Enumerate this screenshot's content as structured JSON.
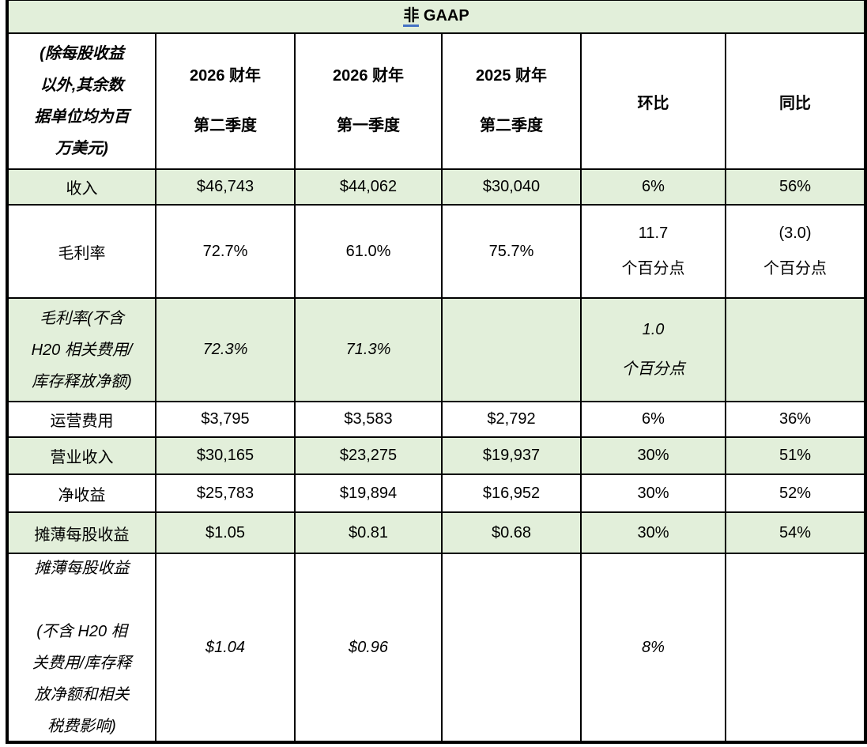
{
  "title": {
    "underlined": "非",
    "rest": " GAAP"
  },
  "header": {
    "description": [
      "(除每股收益",
      "以外,其余数",
      "据单位均为百",
      "万美元)"
    ],
    "col_q2_fy2026": [
      "2026 财年",
      "第二季度"
    ],
    "col_q1_fy2026": [
      "2026 财年",
      "第一季度"
    ],
    "col_q2_fy2025": [
      "2025 财年",
      "第二季度"
    ],
    "col_qoq": "环比",
    "col_yoy": "同比"
  },
  "rows": [
    {
      "label": "收入",
      "q2_fy2026": "$46,743",
      "q1_fy2026": "$44,062",
      "q2_fy2025": "$30,040",
      "qoq": "6%",
      "yoy": "56%"
    },
    {
      "label": "毛利率",
      "q2_fy2026": "72.7%",
      "q1_fy2026": "61.0%",
      "q2_fy2025": "75.7%",
      "qoq": [
        "11.7",
        "个百分点"
      ],
      "yoy": [
        "(3.0)",
        "个百分点"
      ]
    },
    {
      "label": [
        "毛利率(不含",
        "H20 相关费用/",
        "库存释放净额)"
      ],
      "q2_fy2026": "72.3%",
      "q1_fy2026": "71.3%",
      "q2_fy2025": "",
      "qoq": [
        "1.0",
        "个百分点"
      ],
      "yoy": ""
    },
    {
      "label": "运营费用",
      "q2_fy2026": "$3,795",
      "q1_fy2026": "$3,583",
      "q2_fy2025": "$2,792",
      "qoq": "6%",
      "yoy": "36%"
    },
    {
      "label": "营业收入",
      "q2_fy2026": "$30,165",
      "q1_fy2026": "$23,275",
      "q2_fy2025": "$19,937",
      "qoq": "30%",
      "yoy": "51%"
    },
    {
      "label": "净收益",
      "q2_fy2026": "$25,783",
      "q1_fy2026": "$19,894",
      "q2_fy2025": "$16,952",
      "qoq": "30%",
      "yoy": "52%"
    },
    {
      "label": "摊薄每股收益",
      "q2_fy2026": "$1.05",
      "q1_fy2026": "$0.81",
      "q2_fy2025": "$0.68",
      "qoq": "30%",
      "yoy": "54%"
    },
    {
      "label": [
        "摊薄每股收益",
        "",
        "(不含 H20 相",
        "关费用/库存释",
        "放净额和相关",
        "税费影响)"
      ],
      "q2_fy2026": "$1.04",
      "q1_fy2026": "$0.96",
      "q2_fy2025": "",
      "qoq": "8%",
      "yoy": ""
    }
  ],
  "colors": {
    "row_highlight": "#e2efda",
    "border": "#000000",
    "title_underline": "#4472c4",
    "text": "#000000",
    "background": "#ffffff"
  }
}
